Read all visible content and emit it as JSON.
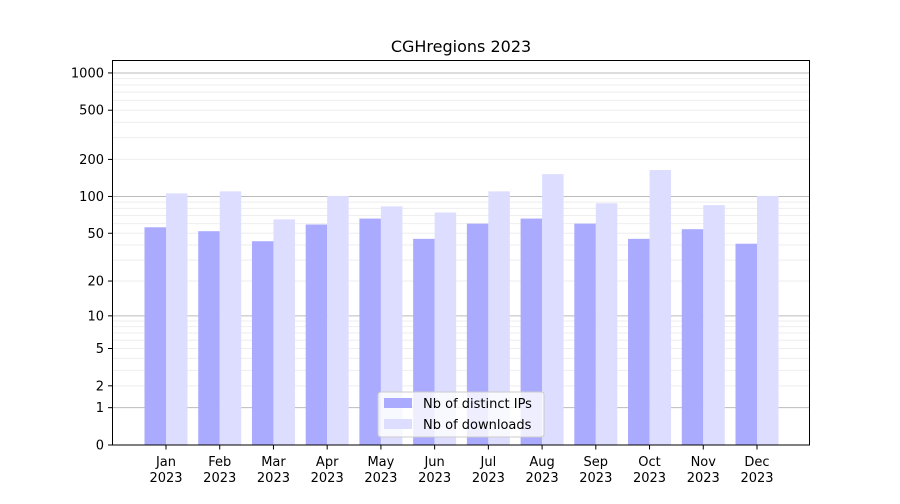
{
  "chart_data": {
    "type": "bar",
    "title": "CGHregions 2023",
    "xlabel": "",
    "ylabel": "",
    "yscale": "symlog",
    "ylim": [
      0,
      1270
    ],
    "grid": true,
    "categories": [
      "Jan\n2023",
      "Feb\n2023",
      "Mar\n2023",
      "Apr\n2023",
      "May\n2023",
      "Jun\n2023",
      "Jul\n2023",
      "Aug\n2023",
      "Sep\n2023",
      "Oct\n2023",
      "Nov\n2023",
      "Dec\n2023"
    ],
    "yticks": [
      0,
      1,
      2,
      5,
      10,
      20,
      50,
      100,
      200,
      500,
      1000
    ],
    "series": [
      {
        "name": "Nb of distinct IPs",
        "color": "#aaaaff",
        "values": [
          56,
          52,
          43,
          59,
          66,
          45,
          60,
          66,
          60,
          45,
          54,
          41
        ]
      },
      {
        "name": "Nb of downloads",
        "color": "#ddddff",
        "values": [
          106,
          110,
          65,
          101,
          83,
          74,
          110,
          152,
          88,
          164,
          85,
          101
        ]
      }
    ],
    "legend": {
      "position": "lower-center"
    }
  }
}
